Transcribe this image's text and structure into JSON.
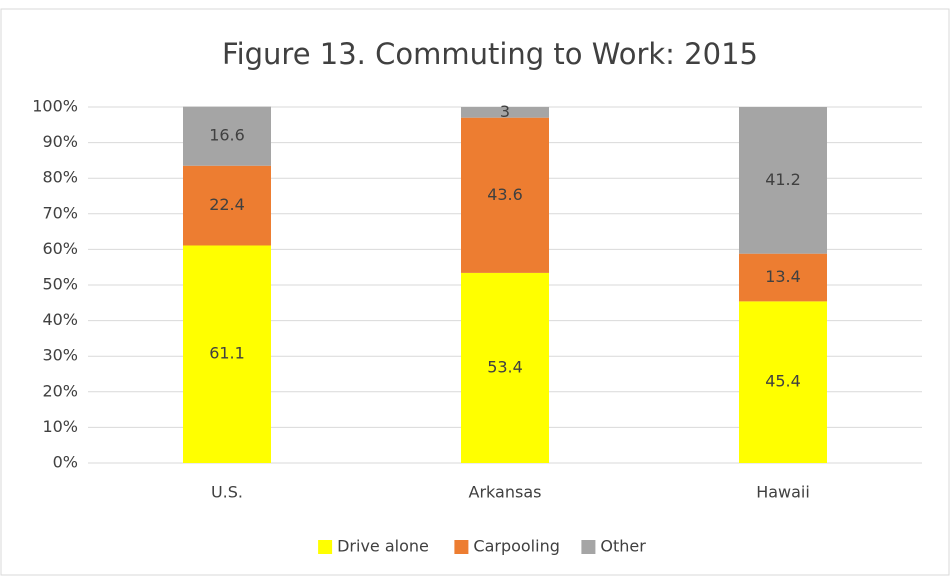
{
  "chart_data": {
    "type": "bar",
    "stacked": true,
    "title": "Figure 13. Commuting to Work: 2015",
    "categories": [
      "U.S.",
      "Arkansas",
      "Hawaii"
    ],
    "series": [
      {
        "name": "Drive alone",
        "color": "#ffff00",
        "values": [
          61.1,
          53.4,
          45.4
        ]
      },
      {
        "name": "Carpooling",
        "color": "#ed7d31",
        "values": [
          22.4,
          43.6,
          13.4
        ]
      },
      {
        "name": "Other",
        "color": "#a5a5a5",
        "values": [
          16.6,
          3.0,
          41.2
        ]
      }
    ],
    "ylim": [
      0,
      100
    ],
    "yticks": [
      {
        "value": 0,
        "label": "0%"
      },
      {
        "value": 10,
        "label": "10%"
      },
      {
        "value": 20,
        "label": "20%"
      },
      {
        "value": 30,
        "label": "30%"
      },
      {
        "value": 40,
        "label": "40%"
      },
      {
        "value": 50,
        "label": "50%"
      },
      {
        "value": 60,
        "label": "60%"
      },
      {
        "value": 70,
        "label": "70%"
      },
      {
        "value": 80,
        "label": "80%"
      },
      {
        "value": 90,
        "label": "90%"
      },
      {
        "value": 100,
        "label": "100%"
      }
    ],
    "grid": true,
    "legend": "bottom"
  }
}
